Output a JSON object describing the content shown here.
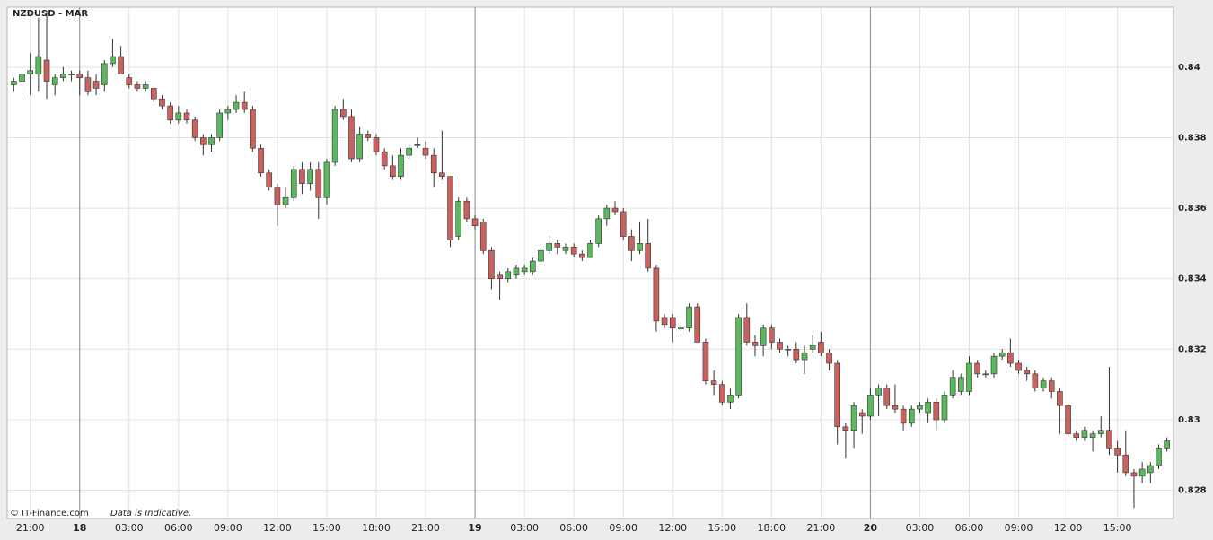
{
  "chart_data": {
    "type": "candlestick",
    "title": "NZDUSD - MAR",
    "source": "© IT-Finance.com",
    "note": "Data is Indicative.",
    "up_color": "#5cb85c",
    "down_color": "#c9625f",
    "grid": true,
    "xlim": [
      -4.4,
      66.4
    ],
    "ylim": [
      0.8272,
      0.8417
    ],
    "xticks": [
      {
        "value": -3,
        "label": "21:00"
      },
      {
        "value": 0,
        "label": "18"
      },
      {
        "value": 3,
        "label": "03:00"
      },
      {
        "value": 6,
        "label": "06:00"
      },
      {
        "value": 9,
        "label": "09:00"
      },
      {
        "value": 12,
        "label": "12:00"
      },
      {
        "value": 15,
        "label": "15:00"
      },
      {
        "value": 18,
        "label": "18:00"
      },
      {
        "value": 21,
        "label": "21:00"
      },
      {
        "value": 24,
        "label": "19"
      },
      {
        "value": 27,
        "label": "03:00"
      },
      {
        "value": 30,
        "label": "06:00"
      },
      {
        "value": 33,
        "label": "09:00"
      },
      {
        "value": 36,
        "label": "12:00"
      },
      {
        "value": 39,
        "label": "15:00"
      },
      {
        "value": 42,
        "label": "18:00"
      },
      {
        "value": 45,
        "label": "21:00"
      },
      {
        "value": 48,
        "label": "20"
      },
      {
        "value": 51,
        "label": "03:00"
      },
      {
        "value": 54,
        "label": "06:00"
      },
      {
        "value": 57,
        "label": "09:00"
      },
      {
        "value": 60,
        "label": "12:00"
      },
      {
        "value": 63,
        "label": "15:00"
      }
    ],
    "yticks": [
      0.828,
      0.83,
      0.832,
      0.834,
      0.836,
      0.838,
      0.84
    ],
    "x": [
      -4,
      -3.5,
      -3,
      -2.5,
      -2,
      -1.5,
      -1,
      -0.5,
      0,
      0.5,
      1,
      1.5,
      2,
      2.5,
      3,
      3.5,
      4,
      4.5,
      5,
      5.5,
      6,
      6.5,
      7,
      7.5,
      8,
      8.5,
      9,
      9.5,
      10,
      10.5,
      11,
      11.5,
      12,
      12.5,
      13,
      13.5,
      14,
      14.5,
      15,
      15.5,
      16,
      16.5,
      17,
      17.5,
      18,
      18.5,
      19,
      19.5,
      20,
      20.5,
      21,
      21.5,
      22,
      22.5,
      23,
      23.5,
      24,
      24.5,
      25,
      25.5,
      26,
      26.5,
      27,
      27.5,
      28,
      28.5,
      29,
      29.5,
      30,
      30.5,
      31,
      31.5,
      32,
      32.5,
      33,
      33.5,
      34,
      34.5,
      35,
      35.5,
      36,
      36.5,
      37,
      37.5,
      38,
      38.5,
      39,
      39.5,
      40,
      40.5,
      41,
      41.5,
      42,
      42.5,
      43,
      43.5,
      44,
      44.5,
      45,
      45.5,
      46,
      46.5,
      47,
      47.5,
      48,
      48.5,
      49,
      49.5,
      50,
      50.5,
      51,
      51.5,
      52,
      52.5,
      53,
      53.5,
      54,
      54.5,
      55,
      55.5,
      56,
      56.5,
      57,
      57.5,
      58,
      58.5,
      59,
      59.5,
      60,
      60.5,
      61,
      61.5,
      62,
      62.5,
      63,
      63.5,
      64,
      64.5,
      65,
      65.5,
      66
    ],
    "open": [
      0.8395,
      0.8396,
      0.8398,
      0.8398,
      0.8402,
      0.8395,
      0.8397,
      0.8398,
      0.8398,
      0.8397,
      0.8396,
      0.8395,
      0.8401,
      0.8403,
      0.8397,
      0.8395,
      0.8394,
      0.8394,
      0.8391,
      0.8389,
      0.8385,
      0.8387,
      0.8385,
      0.838,
      0.8378,
      0.838,
      0.8387,
      0.8388,
      0.839,
      0.8388,
      0.8377,
      0.837,
      0.8366,
      0.8361,
      0.8363,
      0.8371,
      0.8367,
      0.8371,
      0.8363,
      0.8373,
      0.8388,
      0.8386,
      0.8374,
      0.8381,
      0.838,
      0.8376,
      0.8372,
      0.8369,
      0.8375,
      0.8378,
      0.8377,
      0.8375,
      0.837,
      0.8369,
      0.8352,
      0.8362,
      0.8357,
      0.8356,
      0.8348,
      0.8341,
      0.834,
      0.8341,
      0.8342,
      0.8342,
      0.8345,
      0.8348,
      0.835,
      0.8348,
      0.8349,
      0.8347,
      0.8346,
      0.835,
      0.8357,
      0.836,
      0.8359,
      0.8352,
      0.8348,
      0.835,
      0.8343,
      0.8329,
      0.8329,
      0.8326,
      0.8326,
      0.8332,
      0.8322,
      0.8311,
      0.831,
      0.8305,
      0.8307,
      0.8329,
      0.8322,
      0.8321,
      0.8326,
      0.8322,
      0.832,
      0.832,
      0.8317,
      0.832,
      0.8322,
      0.8319,
      0.8316,
      0.8298,
      0.8297,
      0.8302,
      0.8301,
      0.8307,
      0.8309,
      0.8304,
      0.8303,
      0.8299,
      0.8303,
      0.8302,
      0.8305,
      0.83,
      0.8307,
      0.8308,
      0.8308,
      0.8316,
      0.8313,
      0.8313,
      0.8318,
      0.8319,
      0.8316,
      0.8314,
      0.8313,
      0.8309,
      0.8311,
      0.8308,
      0.8304,
      0.8296,
      0.8295,
      0.8295,
      0.8296,
      0.8297,
      0.8292,
      0.829,
      0.8285,
      0.8284,
      0.8285,
      0.8287,
      0.8292
    ],
    "high": [
      0.8397,
      0.84,
      0.8404,
      0.8414,
      0.8416,
      0.8398,
      0.84,
      0.8399,
      0.8399,
      0.8399,
      0.8398,
      0.8402,
      0.8408,
      0.8406,
      0.8398,
      0.8396,
      0.8396,
      0.8394,
      0.8392,
      0.839,
      0.8389,
      0.8388,
      0.8386,
      0.8381,
      0.8381,
      0.8388,
      0.8389,
      0.8392,
      0.8393,
      0.8389,
      0.8378,
      0.8371,
      0.8367,
      0.8366,
      0.8372,
      0.8373,
      0.8373,
      0.8373,
      0.8374,
      0.8389,
      0.8391,
      0.8388,
      0.8383,
      0.8382,
      0.8381,
      0.8377,
      0.8375,
      0.8377,
      0.8378,
      0.838,
      0.8379,
      0.8377,
      0.8382,
      0.8369,
      0.8363,
      0.8363,
      0.8358,
      0.8357,
      0.8349,
      0.8342,
      0.8343,
      0.8344,
      0.8344,
      0.8346,
      0.8349,
      0.8352,
      0.8351,
      0.835,
      0.835,
      0.8348,
      0.8351,
      0.8358,
      0.8361,
      0.8362,
      0.836,
      0.8354,
      0.8356,
      0.8357,
      0.8344,
      0.833,
      0.833,
      0.8327,
      0.8333,
      0.8333,
      0.8323,
      0.8314,
      0.8311,
      0.8309,
      0.833,
      0.8333,
      0.8324,
      0.8327,
      0.8327,
      0.8323,
      0.8321,
      0.8322,
      0.8321,
      0.8324,
      0.8325,
      0.832,
      0.8317,
      0.8299,
      0.8305,
      0.8303,
      0.8309,
      0.831,
      0.831,
      0.831,
      0.8304,
      0.8304,
      0.8305,
      0.8306,
      0.8306,
      0.8308,
      0.8314,
      0.8313,
      0.8318,
      0.8317,
      0.8314,
      0.8319,
      0.832,
      0.8323,
      0.8317,
      0.8315,
      0.8314,
      0.8312,
      0.8312,
      0.8309,
      0.8305,
      0.8297,
      0.8298,
      0.8297,
      0.8301,
      0.8315,
      0.8294,
      0.8297,
      0.8286,
      0.8288,
      0.8288,
      0.8293,
      0.8295
    ],
    "low": [
      0.8393,
      0.8391,
      0.8392,
      0.8393,
      0.8391,
      0.8392,
      0.8396,
      0.8396,
      0.8392,
      0.8392,
      0.8392,
      0.8393,
      0.84,
      0.8398,
      0.8394,
      0.8393,
      0.8393,
      0.839,
      0.8388,
      0.8384,
      0.8384,
      0.8384,
      0.8379,
      0.8375,
      0.8376,
      0.8379,
      0.8385,
      0.8387,
      0.8387,
      0.8376,
      0.8369,
      0.8365,
      0.8355,
      0.836,
      0.8362,
      0.8364,
      0.8365,
      0.8357,
      0.8361,
      0.8372,
      0.8385,
      0.8373,
      0.8373,
      0.8379,
      0.8375,
      0.8371,
      0.8368,
      0.8368,
      0.8374,
      0.8377,
      0.8374,
      0.8366,
      0.8368,
      0.8349,
      0.8351,
      0.8356,
      0.8354,
      0.8347,
      0.8337,
      0.8334,
      0.8339,
      0.834,
      0.8341,
      0.8341,
      0.8344,
      0.8347,
      0.8347,
      0.8347,
      0.8346,
      0.8345,
      0.8346,
      0.8349,
      0.8355,
      0.8358,
      0.8351,
      0.8345,
      0.8347,
      0.8342,
      0.8325,
      0.8326,
      0.8322,
      0.8325,
      0.8325,
      0.8322,
      0.831,
      0.8307,
      0.8304,
      0.8303,
      0.8306,
      0.8321,
      0.8318,
      0.8318,
      0.832,
      0.8319,
      0.8318,
      0.8316,
      0.8313,
      0.8319,
      0.8318,
      0.8314,
      0.8293,
      0.8289,
      0.8292,
      0.8296,
      0.83,
      0.8301,
      0.8303,
      0.8302,
      0.8297,
      0.8298,
      0.8302,
      0.8299,
      0.8297,
      0.8299,
      0.8306,
      0.8307,
      0.8307,
      0.8312,
      0.8312,
      0.8312,
      0.8317,
      0.8315,
      0.8313,
      0.8311,
      0.8308,
      0.8308,
      0.8306,
      0.8296,
      0.8295,
      0.8294,
      0.8294,
      0.8291,
      0.8295,
      0.829,
      0.8285,
      0.8284,
      0.8275,
      0.8282,
      0.8282,
      0.8286,
      0.8291
    ],
    "close": [
      0.8396,
      0.8398,
      0.8399,
      0.8403,
      0.8396,
      0.8397,
      0.8398,
      0.8398,
      0.8397,
      0.8393,
      0.8394,
      0.8401,
      0.8403,
      0.8398,
      0.8395,
      0.8394,
      0.8395,
      0.8391,
      0.8389,
      0.8385,
      0.8387,
      0.8385,
      0.838,
      0.8378,
      0.838,
      0.8387,
      0.8388,
      0.839,
      0.8388,
      0.8377,
      0.837,
      0.8366,
      0.8361,
      0.8363,
      0.8371,
      0.8367,
      0.8371,
      0.8363,
      0.8373,
      0.8388,
      0.8386,
      0.8374,
      0.8381,
      0.838,
      0.8376,
      0.8372,
      0.8369,
      0.8375,
      0.8377,
      0.8378,
      0.8375,
      0.837,
      0.8369,
      0.8351,
      0.8362,
      0.8357,
      0.8355,
      0.8348,
      0.834,
      0.834,
      0.8342,
      0.8343,
      0.8343,
      0.8345,
      0.8348,
      0.835,
      0.8349,
      0.8349,
      0.8347,
      0.8346,
      0.835,
      0.8357,
      0.836,
      0.8359,
      0.8352,
      0.8348,
      0.835,
      0.8343,
      0.8328,
      0.8327,
      0.8326,
      0.8326,
      0.8332,
      0.8322,
      0.8311,
      0.831,
      0.8305,
      0.8307,
      0.8329,
      0.8322,
      0.8321,
      0.8326,
      0.8322,
      0.832,
      0.832,
      0.8317,
      0.8319,
      0.8321,
      0.8319,
      0.8316,
      0.8298,
      0.8297,
      0.8304,
      0.8301,
      0.8307,
      0.8309,
      0.8304,
      0.8303,
      0.8299,
      0.8303,
      0.8304,
      0.8305,
      0.83,
      0.8307,
      0.8312,
      0.8312,
      0.8316,
      0.8313,
      0.8313,
      0.8318,
      0.8319,
      0.8316,
      0.8314,
      0.8313,
      0.8309,
      0.8311,
      0.8308,
      0.8304,
      0.8296,
      0.8295,
      0.8297,
      0.8296,
      0.8297,
      0.8292,
      0.829,
      0.8285,
      0.8284,
      0.8286,
      0.8287,
      0.8292,
      0.8294
    ]
  }
}
